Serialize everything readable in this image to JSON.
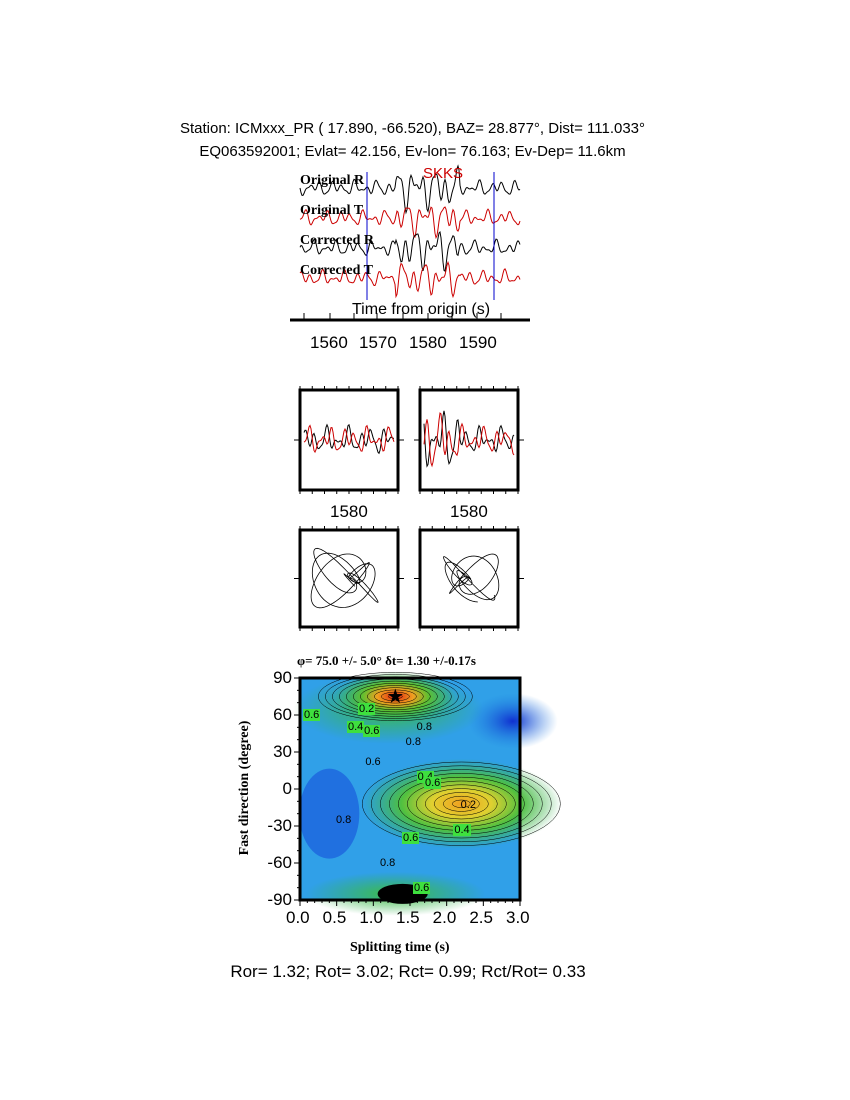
{
  "header": {
    "line1": "Station: ICMxxx_PR (  17.890,  -66.520), BAZ=   28.877°, Dist=  111.033°",
    "line2": "EQ063592001; Evlat=  42.156, Ev-lon=  76.163; Ev-Dep= 11.6km"
  },
  "waveforms": {
    "phase": "SKKS",
    "traces": [
      "Original R",
      "Original T",
      "Corrected R",
      "Corrected T"
    ],
    "trace_colors": [
      "#000000",
      "#cc0000",
      "#000000",
      "#cc0000"
    ],
    "window_color": "#0000cc",
    "xlabel": "Time from origin (s)",
    "xticks": [
      "1560",
      "1570",
      "1580",
      "1590"
    ]
  },
  "particle_motion": {
    "wave_labels": [
      "1580",
      "1580"
    ]
  },
  "chart_data": {
    "type": "heatmap",
    "title": "φ= 75.0 +/- 5.0° δt= 1.30 +/-0.17s",
    "xlabel": "Splitting time (s)",
    "ylabel": "Fast direction (degree)",
    "xlim": [
      0,
      3
    ],
    "ylim": [
      -90,
      90
    ],
    "xticks": [
      "0.0",
      "0.5",
      "1.0",
      "1.5",
      "2.0",
      "2.5",
      "3.0"
    ],
    "yticks": [
      "90",
      "60",
      "30",
      "0",
      "-30",
      "-60",
      "-90"
    ],
    "best_fit": {
      "dt": 1.3,
      "phi": 75.0
    },
    "contour_labels": [
      "0.6",
      "0.2",
      "0.4",
      "0.6",
      "0.8",
      "0.8",
      "0.6",
      "0.4",
      "0.6",
      "0.2",
      "0.8",
      "0.4",
      "0.6",
      "0.8",
      "0.6"
    ]
  },
  "footer": "Ror= 1.32; Rot= 3.02; Rct= 0.99; Rct/Rot= 0.33"
}
